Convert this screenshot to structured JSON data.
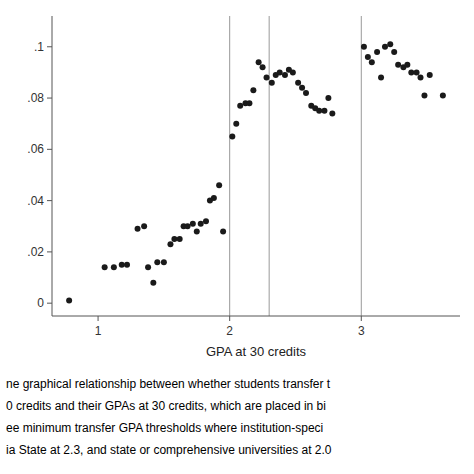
{
  "chart_data": {
    "type": "scatter",
    "x_label": "GPA at 30 credits",
    "annotations": [
      "ne graphical relationship between whether students transfer t",
      "0 credits and their GPAs at 30 credits, which are placed in bi",
      "ee minimum transfer GPA thresholds where institution-speci",
      "ia State at 2.3, and state or comprehensive universities at 2.0"
    ],
    "x": [
      0.78,
      1.05,
      1.12,
      1.18,
      1.22,
      1.3,
      1.35,
      1.38,
      1.42,
      1.45,
      1.5,
      1.55,
      1.58,
      1.62,
      1.65,
      1.68,
      1.72,
      1.75,
      1.78,
      1.82,
      1.85,
      1.88,
      1.92,
      1.95,
      2.02,
      2.05,
      2.08,
      2.12,
      2.15,
      2.18,
      2.22,
      2.25,
      2.28,
      2.32,
      2.35,
      2.38,
      2.42,
      2.45,
      2.48,
      2.52,
      2.55,
      2.58,
      2.62,
      2.65,
      2.68,
      2.72,
      2.75,
      2.78,
      3.02,
      3.05,
      3.08,
      3.12,
      3.15,
      3.18,
      3.22,
      3.25,
      3.28,
      3.32,
      3.35,
      3.38,
      3.42,
      3.45,
      3.48,
      3.52,
      3.62
    ],
    "values": [
      0.001,
      0.014,
      0.014,
      0.015,
      0.015,
      0.029,
      0.03,
      0.014,
      0.008,
      0.016,
      0.016,
      0.023,
      0.025,
      0.025,
      0.03,
      0.03,
      0.031,
      0.028,
      0.031,
      0.032,
      0.04,
      0.041,
      0.046,
      0.028,
      0.065,
      0.07,
      0.077,
      0.078,
      0.078,
      0.083,
      0.094,
      0.092,
      0.088,
      0.086,
      0.089,
      0.09,
      0.089,
      0.091,
      0.09,
      0.086,
      0.084,
      0.082,
      0.077,
      0.076,
      0.075,
      0.075,
      0.08,
      0.074,
      0.1,
      0.096,
      0.094,
      0.098,
      0.088,
      0.1,
      0.101,
      0.098,
      0.093,
      0.092,
      0.093,
      0.09,
      0.09,
      0.088,
      0.081,
      0.089,
      0.081
    ],
    "color": "#1a1a1a",
    "vlines": [
      2.0,
      2.3,
      3.0
    ],
    "xlim": [
      0.65,
      3.75
    ],
    "ylim": [
      -0.005,
      0.112
    ],
    "xticks": [
      1,
      2,
      3
    ],
    "yticks": [
      0,
      {
        "value": 0.02,
        "label": ".02"
      },
      {
        "value": 0.04,
        "label": ".04"
      },
      {
        "value": 0.06,
        "label": ".06"
      },
      {
        "value": 0.08,
        "label": ".08"
      },
      {
        "value": 0.1,
        "label": ".1"
      }
    ],
    "grid": false
  }
}
